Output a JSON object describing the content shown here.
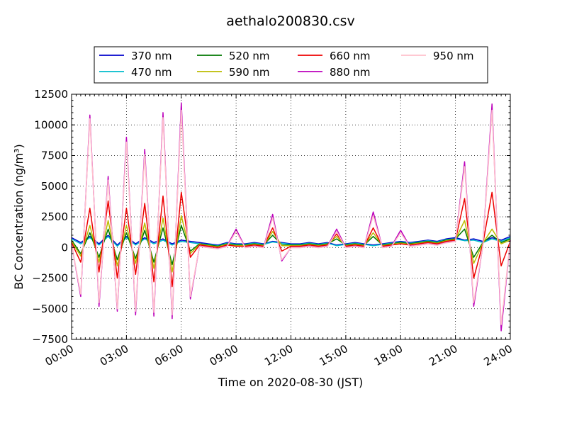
{
  "chart_data": {
    "type": "line",
    "title": "aethalo200830.csv",
    "xlabel": "Time on 2020-08-30 (JST)",
    "ylabel": "BC Concentration (ng/m³)",
    "xlim": [
      "00:00",
      "24:00"
    ],
    "ylim": [
      -7500,
      12500
    ],
    "grid": true,
    "legend_placement": "top",
    "x_ticks": [
      "00:00",
      "03:00",
      "06:00",
      "09:00",
      "12:00",
      "15:00",
      "18:00",
      "21:00",
      "24:00"
    ],
    "y_ticks": [
      "12500",
      "10000",
      "7500",
      "5000",
      "2500",
      "0",
      "−2500",
      "−5000",
      "−7500"
    ],
    "x_hours": [
      0,
      0.5,
      1.0,
      1.5,
      2.0,
      2.5,
      3.0,
      3.5,
      4.0,
      4.5,
      5.0,
      5.5,
      6.0,
      6.5,
      7.0,
      7.5,
      8.0,
      8.5,
      9.0,
      9.5,
      10.0,
      10.5,
      11.0,
      11.5,
      12.0,
      12.5,
      13.0,
      13.5,
      14.0,
      14.5,
      15.0,
      15.5,
      16.0,
      16.5,
      17.0,
      17.5,
      18.0,
      18.5,
      19.0,
      19.5,
      20.0,
      20.5,
      21.0,
      21.5,
      22.0,
      22.5,
      23.0,
      23.5,
      24.0
    ],
    "series": [
      {
        "name": "370 nm",
        "color": "#0000cc",
        "values": [
          800,
          400,
          900,
          300,
          1000,
          200,
          900,
          300,
          800,
          400,
          700,
          300,
          600,
          500,
          400,
          300,
          200,
          400,
          300,
          300,
          400,
          300,
          500,
          400,
          300,
          300,
          400,
          300,
          400,
          200,
          300,
          400,
          300,
          200,
          300,
          400,
          500,
          400,
          500,
          600,
          500,
          700,
          800,
          600,
          700,
          500,
          800,
          600,
          900
        ]
      },
      {
        "name": "470 nm",
        "color": "#00bbcc",
        "values": [
          700,
          300,
          800,
          200,
          900,
          100,
          800,
          200,
          700,
          300,
          600,
          200,
          500,
          400,
          300,
          250,
          150,
          350,
          250,
          250,
          350,
          250,
          450,
          350,
          250,
          250,
          350,
          250,
          350,
          150,
          250,
          350,
          250,
          150,
          250,
          350,
          450,
          350,
          450,
          550,
          450,
          650,
          700,
          550,
          600,
          400,
          700,
          500,
          800
        ]
      },
      {
        "name": "520 nm",
        "color": "#007700",
        "values": [
          600,
          -500,
          1200,
          -800,
          1500,
          -1000,
          1200,
          -900,
          1400,
          -1200,
          1600,
          -1400,
          1800,
          -300,
          300,
          200,
          100,
          300,
          200,
          200,
          300,
          200,
          1000,
          200,
          200,
          200,
          300,
          200,
          300,
          700,
          200,
          300,
          200,
          900,
          200,
          300,
          400,
          300,
          400,
          500,
          400,
          600,
          700,
          1500,
          -800,
          400,
          1000,
          400,
          700
        ]
      },
      {
        "name": "590 nm",
        "color": "#bbbb00",
        "values": [
          500,
          -700,
          1800,
          -1200,
          2200,
          -1500,
          1800,
          -1300,
          2000,
          -1700,
          2400,
          -2000,
          2600,
          -500,
          250,
          150,
          50,
          250,
          150,
          150,
          250,
          150,
          1300,
          150,
          150,
          150,
          250,
          150,
          250,
          900,
          150,
          250,
          150,
          1200,
          150,
          250,
          350,
          250,
          350,
          450,
          350,
          550,
          650,
          2200,
          -1300,
          350,
          1500,
          300,
          600
        ]
      },
      {
        "name": "660 nm",
        "color": "#ee0000",
        "values": [
          400,
          -1200,
          3200,
          -2000,
          3800,
          -2500,
          3200,
          -2200,
          3600,
          -2800,
          4200,
          -3200,
          4500,
          -800,
          200,
          100,
          0,
          200,
          100,
          100,
          200,
          100,
          1600,
          -300,
          100,
          100,
          200,
          100,
          200,
          1100,
          100,
          200,
          100,
          1600,
          100,
          200,
          300,
          200,
          300,
          400,
          300,
          500,
          600,
          4000,
          -2500,
          300,
          4500,
          -1500,
          500
        ]
      },
      {
        "name": "880 nm",
        "color": "#bb00bb",
        "values": [
          300,
          -4000,
          10800,
          -4800,
          5800,
          -5200,
          9000,
          -5500,
          8000,
          -5600,
          11000,
          -5800,
          11800,
          -4200,
          100,
          0,
          -100,
          100,
          1500,
          0,
          100,
          0,
          2700,
          -1100,
          0,
          0,
          100,
          0,
          100,
          1500,
          0,
          100,
          0,
          2900,
          0,
          100,
          1400,
          100,
          200,
          300,
          200,
          400,
          500,
          7000,
          -4800,
          200,
          11700,
          -6800,
          600
        ]
      },
      {
        "name": "950 nm",
        "color": "#ffc0cb",
        "values": [
          250,
          -3800,
          10500,
          -4500,
          5500,
          -5000,
          8600,
          -5200,
          7600,
          -5300,
          10600,
          -5500,
          11200,
          -4000,
          80,
          -20,
          -120,
          80,
          1300,
          -20,
          80,
          -20,
          2400,
          -1000,
          -20,
          -20,
          80,
          -20,
          80,
          1300,
          -20,
          80,
          -20,
          2600,
          -20,
          80,
          1200,
          80,
          180,
          280,
          180,
          380,
          480,
          6600,
          -4500,
          180,
          11200,
          -6300,
          550
        ]
      }
    ]
  }
}
